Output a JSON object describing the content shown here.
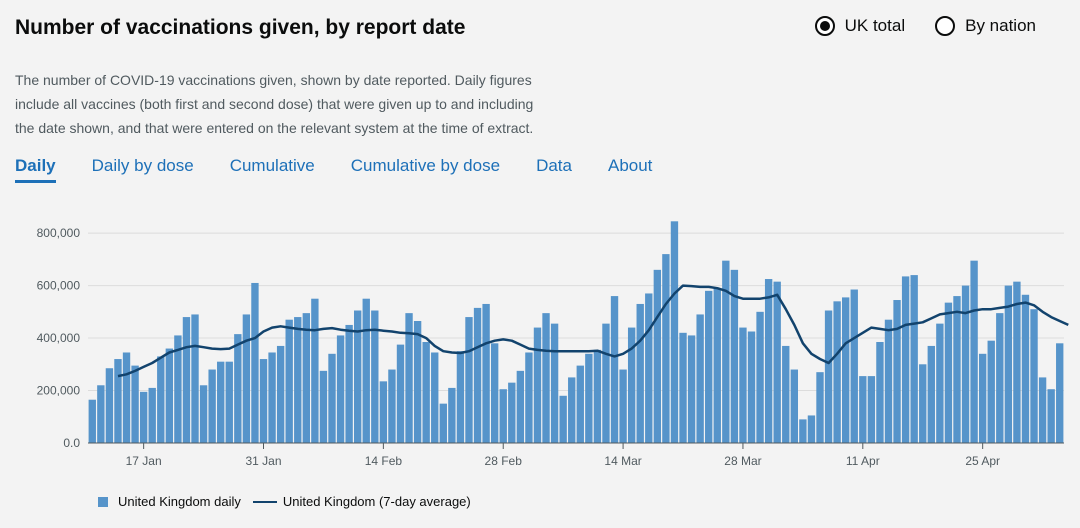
{
  "header": {
    "title": "Number of vaccinations given, by report date",
    "radio_uk": "UK total",
    "radio_nation": "By nation",
    "description": "The number of COVID-19 vaccinations given, shown by date reported. Daily figures include all vaccines (both first and second dose) that were given up to and including the date shown, and that were entered on the relevant system at the time of extract."
  },
  "tabs": [
    {
      "label": "Daily",
      "active": true
    },
    {
      "label": "Daily by dose",
      "active": false
    },
    {
      "label": "Cumulative",
      "active": false
    },
    {
      "label": "Cumulative by dose",
      "active": false
    },
    {
      "label": "Data",
      "active": false
    },
    {
      "label": "About",
      "active": false
    }
  ],
  "colors": {
    "bar": "#5694ca",
    "line": "#12436d",
    "tab": "#1d70b8"
  },
  "legend": {
    "bar_label": "United Kingdom daily",
    "line_label": "United Kingdom (7-day average)"
  },
  "chart_data": {
    "type": "bar",
    "start_date": "2021-01-11",
    "x_tick_labels": [
      "17 Jan",
      "31 Jan",
      "14 Feb",
      "28 Feb",
      "14 Mar",
      "28 Mar",
      "11 Apr",
      "25 Apr"
    ],
    "y_tick_labels": [
      "0.0",
      "200,000",
      "400,000",
      "600,000",
      "800,000"
    ],
    "ylim": [
      0,
      850000
    ],
    "grid": true,
    "legend_position": "bottom",
    "series": [
      {
        "name": "United Kingdom daily",
        "type": "bar",
        "values": [
          165000,
          220000,
          285000,
          320000,
          345000,
          295000,
          195000,
          210000,
          330000,
          360000,
          410000,
          480000,
          490000,
          220000,
          280000,
          310000,
          310000,
          415000,
          490000,
          610000,
          320000,
          345000,
          370000,
          470000,
          480000,
          495000,
          550000,
          275000,
          340000,
          410000,
          450000,
          505000,
          550000,
          505000,
          235000,
          280000,
          375000,
          495000,
          465000,
          385000,
          345000,
          150000,
          210000,
          350000,
          480000,
          515000,
          530000,
          380000,
          205000,
          230000,
          275000,
          345000,
          440000,
          495000,
          455000,
          180000,
          250000,
          295000,
          340000,
          355000,
          455000,
          560000,
          280000,
          440000,
          530000,
          570000,
          660000,
          720000,
          845000,
          420000,
          410000,
          490000,
          580000,
          590000,
          695000,
          660000,
          440000,
          425000,
          500000,
          625000,
          615000,
          370000,
          280000,
          90000,
          105000,
          270000,
          505000,
          540000,
          555000,
          585000,
          255000,
          255000,
          385000,
          470000,
          545000,
          635000,
          640000,
          300000,
          370000,
          455000,
          535000,
          560000,
          600000,
          695000,
          340000,
          390000,
          495000,
          600000,
          615000,
          565000,
          510000,
          250000,
          205000,
          380000
        ]
      },
      {
        "name": "United Kingdom (7-day average)",
        "type": "line",
        "start_index": 3,
        "values": [
          255000,
          262000,
          275000,
          290000,
          305000,
          325000,
          345000,
          355000,
          365000,
          370000,
          365000,
          360000,
          358000,
          360000,
          375000,
          390000,
          400000,
          425000,
          440000,
          445000,
          440000,
          435000,
          432000,
          430000,
          435000,
          438000,
          432000,
          428000,
          425000,
          430000,
          432000,
          428000,
          425000,
          420000,
          418000,
          415000,
          400000,
          370000,
          350000,
          345000,
          343000,
          350000,
          365000,
          380000,
          390000,
          395000,
          390000,
          375000,
          360000,
          355000,
          352000,
          350000,
          350000,
          350000,
          350000,
          350000,
          352000,
          340000,
          330000,
          340000,
          360000,
          390000,
          430000,
          480000,
          530000,
          570000,
          600000,
          598000,
          595000,
          595000,
          590000,
          580000,
          560000,
          550000,
          550000,
          550000,
          555000,
          565000,
          510000,
          450000,
          380000,
          340000,
          320000,
          305000,
          340000,
          380000,
          400000,
          420000,
          440000,
          435000,
          430000,
          435000,
          450000,
          455000,
          460000,
          475000,
          490000,
          495000,
          500000,
          495000,
          505000,
          510000,
          510000,
          515000,
          520000,
          530000,
          535000,
          525000,
          500000,
          480000,
          465000,
          450000
        ]
      }
    ]
  }
}
